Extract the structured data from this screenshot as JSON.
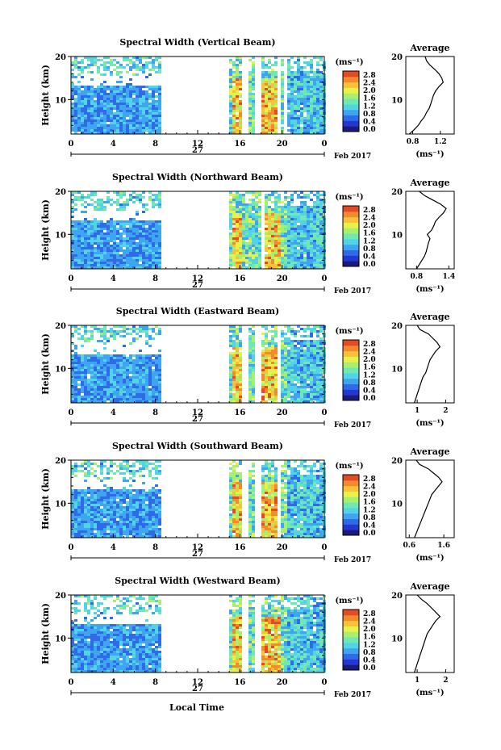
{
  "figure": {
    "xlabel": "Local Time",
    "date_label": "Feb 2017",
    "day_label": "27",
    "ylabel": "Height (km)",
    "avg_title": "Average",
    "cbar_unit": "(ms⁻¹)",
    "avg_xlabel": "(ms⁻¹)"
  },
  "chart_data": [
    {
      "type": "heatmap",
      "title": "Spectral Width (Vertical Beam)",
      "xlabel": "Local Time",
      "ylabel": "Height (km)",
      "xlim": [
        0,
        24
      ],
      "ylim": [
        2,
        20
      ],
      "xticks": [
        "0",
        "4",
        "8",
        "12",
        "16",
        "20",
        "0"
      ],
      "yticks": [
        "20",
        "10"
      ],
      "colorbar": {
        "label": "(ms⁻¹)",
        "ticks": [
          "2.8",
          "2.4",
          "2.0",
          "1.6",
          "1.2",
          "0.8",
          "0.4",
          "0.0"
        ]
      },
      "data_gaps_hours": [
        [
          8.7,
          15.1
        ],
        [
          16.1,
          16.7
        ],
        [
          17.5,
          18.1
        ],
        [
          19.5,
          19.9
        ],
        [
          20.3,
          20.6
        ]
      ],
      "profile": {
        "title": "Average",
        "xlabel": "(ms⁻¹)",
        "xlim": [
          0.7,
          1.4
        ],
        "xticks": [
          "0.8",
          "1.2"
        ],
        "heights": [
          2,
          3,
          4,
          5,
          6,
          7,
          8,
          9,
          10,
          11,
          12,
          13,
          14,
          15,
          16,
          17,
          18,
          19,
          20
        ],
        "values": [
          0.75,
          0.82,
          0.88,
          0.92,
          0.97,
          1.0,
          1.04,
          1.06,
          1.08,
          1.1,
          1.13,
          1.18,
          1.24,
          1.22,
          1.18,
          1.12,
          1.05,
          1.0,
          0.98
        ]
      }
    },
    {
      "type": "heatmap",
      "title": "Spectral Width (Northward Beam)",
      "xlabel": "Local Time",
      "ylabel": "Height (km)",
      "xlim": [
        0,
        24
      ],
      "ylim": [
        2,
        20
      ],
      "xticks": [
        "0",
        "4",
        "8",
        "12",
        "16",
        "20",
        "0"
      ],
      "yticks": [
        "20",
        "10"
      ],
      "colorbar": {
        "label": "(ms⁻¹)",
        "ticks": [
          "2.8",
          "2.4",
          "2.0",
          "1.6",
          "1.2",
          "0.8",
          "0.4",
          "0.0"
        ]
      },
      "data_gaps_hours": [
        [
          8.7,
          15.1
        ],
        [
          17.9,
          18.2
        ]
      ],
      "profile": {
        "title": "Average",
        "xlabel": "(ms⁻¹)",
        "xlim": [
          0.6,
          1.5
        ],
        "xticks": [
          "0.8",
          "1.4"
        ],
        "heights": [
          2,
          3,
          4,
          5,
          6,
          7,
          8,
          9,
          10,
          11,
          12,
          13,
          14,
          15,
          16,
          17,
          18,
          19,
          20
        ],
        "values": [
          0.8,
          0.85,
          0.9,
          0.95,
          0.98,
          1.0,
          1.02,
          1.05,
          1.0,
          1.08,
          1.12,
          1.15,
          1.22,
          1.3,
          1.35,
          1.25,
          1.1,
          0.95,
          0.85
        ]
      }
    },
    {
      "type": "heatmap",
      "title": "Spectral Width (Eastward Beam)",
      "xlabel": "Local Time",
      "ylabel": "Height (km)",
      "xlim": [
        0,
        24
      ],
      "ylim": [
        2,
        20
      ],
      "xticks": [
        "0",
        "4",
        "8",
        "12",
        "16",
        "20",
        "0"
      ],
      "yticks": [
        "20",
        "10"
      ],
      "colorbar": {
        "label": "(ms⁻¹)",
        "ticks": [
          "2.8",
          "2.4",
          "2.0",
          "1.6",
          "1.2",
          "0.8",
          "0.4",
          "0.0"
        ]
      },
      "data_gaps_hours": [
        [
          8.7,
          15.1
        ],
        [
          16.1,
          16.7
        ],
        [
          17.5,
          18.1
        ],
        [
          19.5,
          19.9
        ]
      ],
      "profile": {
        "title": "Average",
        "xlabel": "(ms⁻¹)",
        "xlim": [
          0.6,
          2.3
        ],
        "xticks": [
          "1",
          "2"
        ],
        "heights": [
          2,
          3,
          4,
          5,
          6,
          7,
          8,
          9,
          10,
          11,
          12,
          13,
          14,
          15,
          16,
          17,
          18,
          19,
          20
        ],
        "values": [
          0.9,
          0.95,
          1.0,
          1.05,
          1.1,
          1.15,
          1.2,
          1.3,
          1.35,
          1.4,
          1.45,
          1.55,
          1.65,
          1.8,
          1.7,
          1.55,
          1.4,
          1.1,
          1.0
        ]
      }
    },
    {
      "type": "heatmap",
      "title": "Spectral Width (Southward Beam)",
      "xlabel": "Local Time",
      "ylabel": "Height (km)",
      "xlim": [
        0,
        24
      ],
      "ylim": [
        2,
        20
      ],
      "xticks": [
        "0",
        "4",
        "8",
        "12",
        "16",
        "20",
        "0"
      ],
      "yticks": [
        "20",
        "10"
      ],
      "colorbar": {
        "label": "(ms⁻¹)",
        "ticks": [
          "2.8",
          "2.4",
          "2.0",
          "1.6",
          "1.2",
          "0.8",
          "0.4",
          "0.0"
        ]
      },
      "data_gaps_hours": [
        [
          8.7,
          15.1
        ],
        [
          16.1,
          16.7
        ],
        [
          17.5,
          18.1
        ],
        [
          19.5,
          19.9
        ]
      ],
      "profile": {
        "title": "Average",
        "xlabel": "(ms⁻¹)",
        "xlim": [
          0.5,
          1.9
        ],
        "xticks": [
          "0.6",
          "1.6"
        ],
        "heights": [
          2,
          3,
          4,
          5,
          6,
          7,
          8,
          9,
          10,
          11,
          12,
          13,
          14,
          15,
          16,
          17,
          18,
          19,
          20
        ],
        "values": [
          0.75,
          0.8,
          0.85,
          0.9,
          0.95,
          1.0,
          1.05,
          1.1,
          1.15,
          1.2,
          1.25,
          1.35,
          1.45,
          1.55,
          1.45,
          1.3,
          1.15,
          0.9,
          0.8
        ]
      }
    },
    {
      "type": "heatmap",
      "title": "Spectral Width (Westward Beam)",
      "xlabel": "Local Time",
      "ylabel": "Height (km)",
      "xlim": [
        0,
        24
      ],
      "ylim": [
        2,
        20
      ],
      "xticks": [
        "0",
        "4",
        "8",
        "12",
        "16",
        "20",
        "0"
      ],
      "yticks": [
        "20",
        "10"
      ],
      "colorbar": {
        "label": "(ms⁻¹)",
        "ticks": [
          "2.8",
          "2.4",
          "2.0",
          "1.6",
          "1.2",
          "0.8",
          "0.4",
          "0.0"
        ]
      },
      "data_gaps_hours": [
        [
          8.7,
          15.1
        ],
        [
          16.1,
          16.7
        ],
        [
          17.5,
          18.1
        ]
      ],
      "profile": {
        "title": "Average",
        "xlabel": "(ms⁻¹)",
        "xlim": [
          0.6,
          2.3
        ],
        "xticks": [
          "1",
          "2"
        ],
        "heights": [
          2,
          3,
          4,
          5,
          6,
          7,
          8,
          9,
          10,
          11,
          12,
          13,
          14,
          15,
          16,
          17,
          18,
          19,
          20
        ],
        "values": [
          0.9,
          0.95,
          1.0,
          1.05,
          1.1,
          1.15,
          1.2,
          1.25,
          1.3,
          1.35,
          1.45,
          1.55,
          1.65,
          1.8,
          1.65,
          1.5,
          1.35,
          1.15,
          1.0
        ]
      }
    }
  ],
  "colors": {
    "colormap": [
      "#1b1b7a",
      "#2438d0",
      "#2f6ae8",
      "#3fa5f0",
      "#52d4e6",
      "#6fe8b2",
      "#a8ef6f",
      "#e8f04a",
      "#f7c23a",
      "#f28a2e",
      "#e44a24"
    ],
    "axis": "#000000",
    "background": "#ffffff"
  }
}
